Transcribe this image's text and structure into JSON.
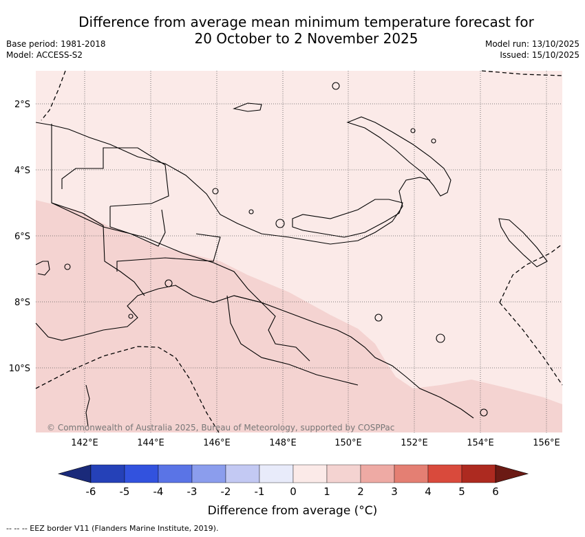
{
  "title_line1": "Difference from average mean minimum temperature forecast for",
  "title_line2": "20 October to 2 November 2025",
  "base_period": "Base period: 1981-2018",
  "model": "Model: ACCESS-S2",
  "model_run": "Model run: 13/10/2025",
  "issued": "Issued: 15/10/2025",
  "copyright": "© Commonwealth of Australia 2025, Bureau of Meteorology, supported by COSPPac",
  "lat_labels": [
    "2°S",
    "4°S",
    "6°S",
    "8°S",
    "10°S"
  ],
  "lon_labels": [
    "142°E",
    "144°E",
    "146°E",
    "148°E",
    "150°E",
    "152°E",
    "154°E",
    "156°E"
  ],
  "colorbar": {
    "title": "Difference from average (°C)",
    "ticks": [
      "-6",
      "-5",
      "-4",
      "-3",
      "-2",
      "-1",
      "0",
      "1",
      "2",
      "3",
      "4",
      "5",
      "6"
    ],
    "colors": [
      "#1a2a7a",
      "#2541b8",
      "#3252de",
      "#5a74e6",
      "#8b9ded",
      "#c3c9f3",
      "#e8ebfa",
      "#fbeae8",
      "#f4d3d1",
      "#eeaaa4",
      "#e47f73",
      "#d94a3c",
      "#ad2a20",
      "#6b1a14"
    ]
  },
  "footer": "--  --  -- EEZ border V11 (Flanders Marine Institute, 2019).",
  "colors": {
    "light_anomaly": "#fbeae8",
    "medium_anomaly": "#f4d3d1"
  }
}
